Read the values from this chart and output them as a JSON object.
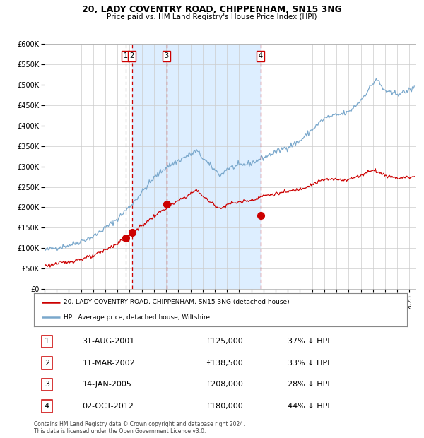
{
  "title1": "20, LADY COVENTRY ROAD, CHIPPENHAM, SN15 3NG",
  "title2": "Price paid vs. HM Land Registry's House Price Index (HPI)",
  "legend_red": "20, LADY COVENTRY ROAD, CHIPPENHAM, SN15 3NG (detached house)",
  "legend_blue": "HPI: Average price, detached house, Wiltshire",
  "footer1": "Contains HM Land Registry data © Crown copyright and database right 2024.",
  "footer2": "This data is licensed under the Open Government Licence v3.0.",
  "transactions": [
    {
      "num": 1,
      "date": "31-AUG-2001",
      "price": 125000,
      "pct": "37%",
      "dir": "↓"
    },
    {
      "num": 2,
      "date": "11-MAR-2002",
      "price": 138500,
      "pct": "33%",
      "dir": "↓"
    },
    {
      "num": 3,
      "date": "14-JAN-2005",
      "price": 208000,
      "pct": "28%",
      "dir": "↓"
    },
    {
      "num": 4,
      "date": "02-OCT-2012",
      "price": 180000,
      "pct": "44%",
      "dir": "↓"
    }
  ],
  "transaction_dates_decimal": [
    2001.664,
    2002.192,
    2005.036,
    2012.751
  ],
  "transaction_prices": [
    125000,
    138500,
    208000,
    180000
  ],
  "vline1_gray": 2001.664,
  "vline2_red": 2002.192,
  "vline3_red": 2005.036,
  "vline4_red": 2012.751,
  "shade_start": 2002.192,
  "shade_end": 2012.751,
  "ylim": [
    0,
    600000
  ],
  "xlim_start": 1995.0,
  "xlim_end": 2025.5,
  "background_color": "#ffffff",
  "plot_bg_color": "#ffffff",
  "shade_color": "#ddeeff",
  "grid_color": "#cccccc",
  "red_line_color": "#cc0000",
  "blue_line_color": "#7aa8cc",
  "red_dot_color": "#cc0000",
  "vline_gray_color": "#aaaaaa",
  "vline_red_color": "#cc0000",
  "box_color": "#cc0000"
}
